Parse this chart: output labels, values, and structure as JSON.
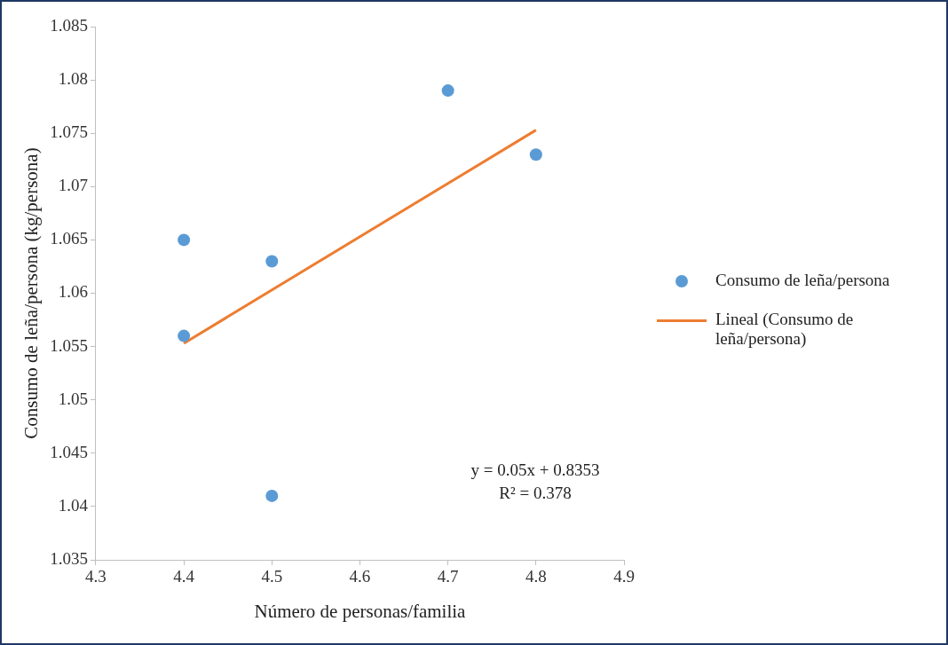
{
  "chart_data": {
    "type": "scatter",
    "xlabel": "Número de personas/familia",
    "ylabel": "Consumo de leña/persona (kg/persona)",
    "series": [
      {
        "name": "Consumo de leña/persona",
        "color": "#5b9bd5",
        "marker": "circle",
        "x": [
          4.4,
          4.4,
          4.5,
          4.5,
          4.7,
          4.8
        ],
        "values": [
          1.065,
          1.056,
          1.063,
          1.041,
          1.079,
          1.073
        ]
      },
      {
        "name": "Lineal (Consumo de leña/persona)",
        "color": "#ed7d31",
        "type": "line",
        "marker": "none",
        "x": [
          4.4,
          4.8
        ],
        "values": [
          1.0553,
          1.0753
        ]
      }
    ],
    "xlim": [
      4.3,
      4.9
    ],
    "xticks": [
      4.3,
      4.4,
      4.5,
      4.6,
      4.7,
      4.8,
      4.9
    ],
    "ylim": [
      1.035,
      1.085
    ],
    "yticks": [
      1.035,
      1.04,
      1.045,
      1.05,
      1.055,
      1.06,
      1.065,
      1.07,
      1.075,
      1.08,
      1.085
    ],
    "annotations": [
      "y = 0.05x + 0.8353",
      "R² = 0.378"
    ],
    "legend": "right",
    "grid": false
  }
}
